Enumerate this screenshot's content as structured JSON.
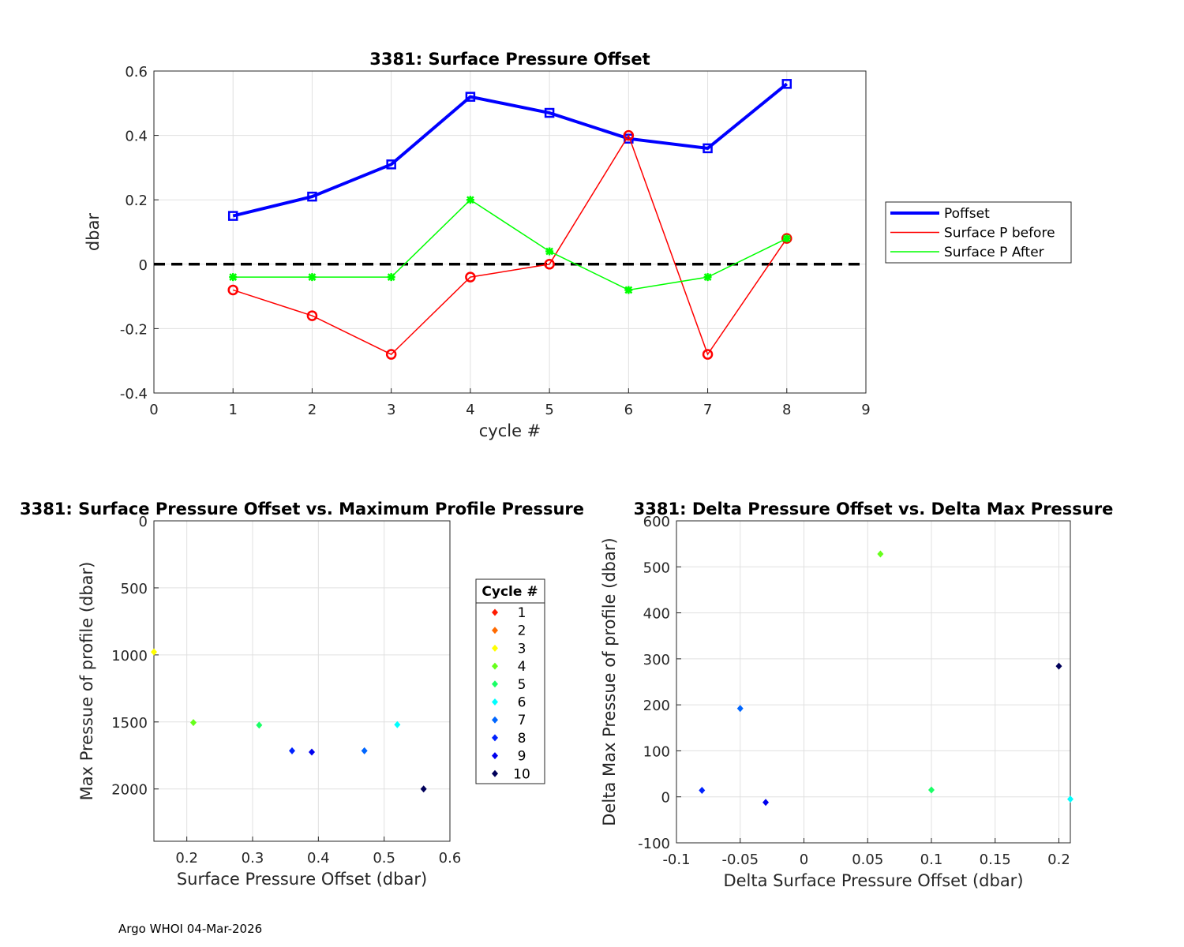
{
  "footer": "Argo WHOI 04-Mar-2026",
  "chart_data": [
    {
      "type": "line",
      "title": "3381: Surface Pressure Offset",
      "xlabel": "cycle #",
      "ylabel": "dbar",
      "xlim": [
        0,
        9
      ],
      "ylim": [
        -0.4,
        0.6
      ],
      "xticks": [
        0,
        1,
        2,
        3,
        4,
        5,
        6,
        7,
        8,
        9
      ],
      "yticks": [
        -0.4,
        -0.2,
        0,
        0.2,
        0.4,
        0.6
      ],
      "grid": true,
      "legend_position": "outside-right",
      "x": [
        1,
        2,
        3,
        4,
        5,
        6,
        7,
        8
      ],
      "series": [
        {
          "name": "Poffset",
          "color": "#0000ff",
          "marker": "square",
          "values": [
            0.15,
            0.21,
            0.31,
            0.52,
            0.47,
            0.39,
            0.36,
            0.56
          ]
        },
        {
          "name": "Surface P before",
          "color": "#ff0000",
          "marker": "circle",
          "values": [
            -0.08,
            -0.16,
            -0.28,
            -0.04,
            0,
            0.4,
            -0.28,
            0.08
          ]
        },
        {
          "name": "Surface P After",
          "color": "#00ff00",
          "marker": "star",
          "values": [
            -0.04,
            -0.04,
            -0.04,
            0.2,
            0.04,
            -0.08,
            -0.04,
            0.08
          ]
        }
      ],
      "reference_line": {
        "y": 0,
        "style": "dashed",
        "color": "#000000"
      }
    },
    {
      "type": "scatter",
      "title": "3381: Surface Pressure Offset vs. Maximum Profile Pressure",
      "xlabel": "Surface Pressure Offset (dbar)",
      "ylabel": "Max Pressue of profile (dbar)",
      "xlim": [
        0.15,
        0.6
      ],
      "ylim": [
        0,
        2390
      ],
      "y_reversed": true,
      "xticks": [
        0.2,
        0.3,
        0.4,
        0.5,
        0.6
      ],
      "yticks": [
        0,
        500,
        1000,
        1500,
        2000
      ],
      "grid": true,
      "legend": {
        "title": "Cycle #",
        "entries": [
          "1",
          "2",
          "3",
          "4",
          "5",
          "6",
          "7",
          "8",
          "9",
          "10"
        ],
        "colors": [
          "#ff1a00",
          "#ff6a00",
          "#ffff00",
          "#66ff1a",
          "#1aff66",
          "#00ffff",
          "#0066ff",
          "#0022ff",
          "#0000ee",
          "#00005a"
        ]
      },
      "points": [
        {
          "cycle": 3,
          "x": 0.15,
          "y": 978
        },
        {
          "cycle": 4,
          "x": 0.21,
          "y": 1505
        },
        {
          "cycle": 5,
          "x": 0.31,
          "y": 1524
        },
        {
          "cycle": 8,
          "x": 0.36,
          "y": 1715
        },
        {
          "cycle": 9,
          "x": 0.39,
          "y": 1725
        },
        {
          "cycle": 7,
          "x": 0.47,
          "y": 1715
        },
        {
          "cycle": 6,
          "x": 0.52,
          "y": 1520
        },
        {
          "cycle": 10,
          "x": 0.56,
          "y": 2000
        }
      ]
    },
    {
      "type": "scatter",
      "title": "3381: Delta Pressure Offset vs. Delta Max Pressure",
      "xlabel": "Delta Surface Pressure Offset (dbar)",
      "ylabel": "Delta Max Pressue of profile (dbar)",
      "xlim": [
        -0.1,
        0.209
      ],
      "ylim": [
        -100,
        600
      ],
      "xticks": [
        -0.1,
        -0.05,
        0,
        0.05,
        0.1,
        0.15,
        0.2
      ],
      "yticks": [
        -100,
        0,
        100,
        200,
        300,
        400,
        500,
        600
      ],
      "grid": true,
      "points": [
        {
          "cycle": 4,
          "x": 0.06,
          "y": 528
        },
        {
          "cycle": 7,
          "x": -0.05,
          "y": 192
        },
        {
          "cycle": 8,
          "x": -0.08,
          "y": 14
        },
        {
          "cycle": 9,
          "x": -0.03,
          "y": -12
        },
        {
          "cycle": 5,
          "x": 0.1,
          "y": 15
        },
        {
          "cycle": 10,
          "x": 0.2,
          "y": 284
        },
        {
          "cycle": 6,
          "x": 0.209,
          "y": -5
        }
      ]
    }
  ]
}
